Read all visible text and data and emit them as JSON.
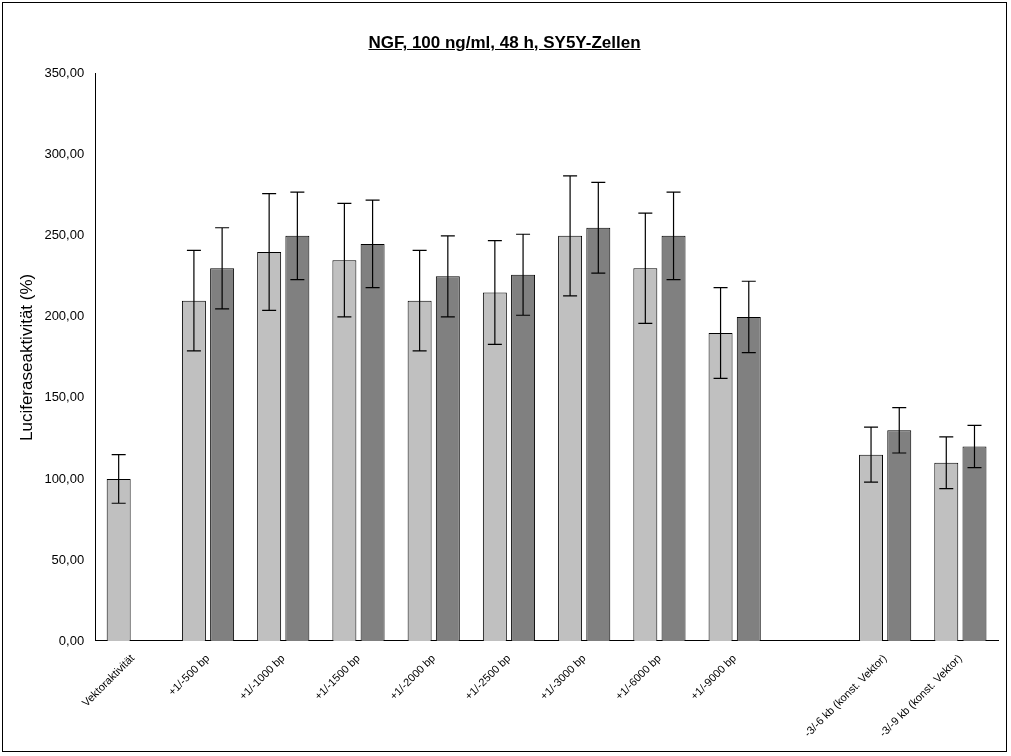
{
  "chart_data": {
    "type": "bar",
    "title": "NGF, 100 ng/ml, 48 h, SY5Y-Zellen",
    "ylabel": "Luciferaseaktivität (%)",
    "categories": [
      "Vektoraktivität",
      "+1/-500 bp",
      "+1/-1000 bp",
      "+1/-1500 bp",
      "+1/-2000 bp",
      "+1/-2500 bp",
      "+1/-3000 bp",
      "+1/-6000 bp",
      "+1/-9000 bp",
      null,
      "-3/-6 kb (konst. Vektor)",
      "-3/-9 kb (konst. Vektor)"
    ],
    "series": [
      {
        "color": "#c0c0c0",
        "values": [
          100,
          210,
          240,
          235,
          210,
          215,
          250,
          230,
          190,
          null,
          115,
          110
        ],
        "errors": [
          15,
          31,
          36,
          35,
          31,
          32,
          37,
          34,
          28,
          null,
          17,
          16
        ]
      },
      {
        "color": "#808080",
        "values": [
          null,
          230,
          250,
          245,
          225,
          226,
          255,
          250,
          200,
          null,
          130,
          120
        ],
        "errors": [
          null,
          25,
          27,
          27,
          25,
          25,
          28,
          27,
          22,
          null,
          14,
          13
        ]
      }
    ],
    "ylim": [
      0,
      350
    ],
    "yticks": [
      {
        "value": 0,
        "label": "0,00"
      },
      {
        "value": 50,
        "label": "50,00"
      },
      {
        "value": 100,
        "label": "100,00"
      },
      {
        "value": 150,
        "label": "150,00"
      },
      {
        "value": 200,
        "label": "200,00"
      },
      {
        "value": 250,
        "label": "250,00"
      },
      {
        "value": 300,
        "label": "300,00"
      },
      {
        "value": 350,
        "label": "350,00"
      }
    ],
    "grid": false,
    "legend": false
  }
}
